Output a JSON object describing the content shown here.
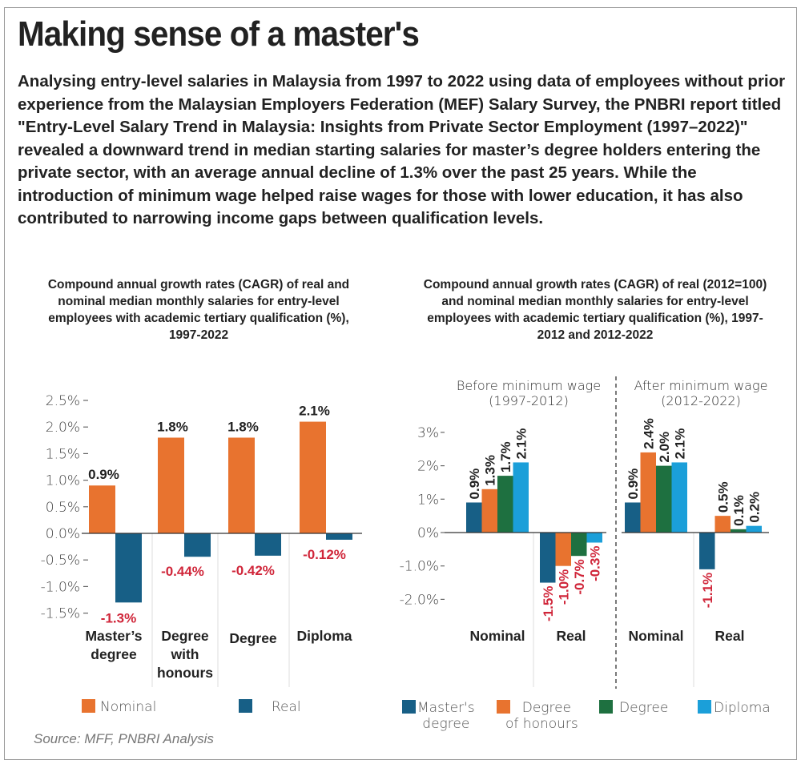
{
  "header": {
    "title": "Making sense of a master's",
    "intro": "Analysing entry-level salaries in Malaysia from 1997 to 2022 using data of employees without prior experience from the Malaysian Employers Federation (MEF) Salary Survey, the PNBRI report titled \"Entry-Level Salary Trend in Malaysia: Insights from Private Sector Employment (1997–2022)\" revealed a downward trend in median starting salaries for master’s degree holders entering the private sector, with an average annual decline of 1.3% over the past 25 years. While the introduction of minimum wage helped raise wages for those with lower education, it has also contributed to narrowing income gaps between qualification levels."
  },
  "source": "Source: MFF, PNBRI Analysis",
  "colors": {
    "nominal": "#E8732F",
    "real": "#175F86",
    "masters": "#175F86",
    "honours": "#E8732F",
    "degree": "#1E7040",
    "diploma": "#1B9FD9",
    "negative_label": "#D0263A"
  },
  "chart_data": [
    {
      "type": "bar",
      "title": "Compound annual growth rates (CAGR) of real and nominal median monthly salaries for entry-level employees with academic tertiary qualification (%), 1997-2022",
      "categories": [
        "Master’s degree",
        "Degree with honours",
        "Degree",
        "Diploma"
      ],
      "category_lines": [
        [
          "Master’s",
          "degree"
        ],
        [
          "Degree",
          "with",
          "honours"
        ],
        [
          "Degree"
        ],
        [
          "Diploma"
        ]
      ],
      "series": [
        {
          "name": "Nominal",
          "values": [
            0.9,
            1.8,
            1.8,
            2.1
          ],
          "labels": [
            "0.9%",
            "1.8%",
            "1.8%",
            "2.1%"
          ]
        },
        {
          "name": "Real",
          "values": [
            -1.3,
            -0.44,
            -0.42,
            -0.12
          ],
          "labels": [
            "-1.3%",
            "-0.44%",
            "-0.42%",
            "-0.12%"
          ]
        }
      ],
      "yticks": [
        "2.5%",
        "2.0%",
        "1.5%",
        "1.0%",
        "0.5%",
        "0.0%",
        "-0.5%",
        "-1.0%",
        "-1.5%"
      ],
      "ytick_values": [
        2.5,
        2.0,
        1.5,
        1.0,
        0.5,
        0.0,
        -0.5,
        -1.0,
        -1.5
      ],
      "ylim": [
        -1.5,
        2.5
      ],
      "xlabel": "",
      "ylabel": "",
      "legend": [
        "Nominal",
        "Real"
      ],
      "legend_position": "bottom"
    },
    {
      "type": "bar",
      "title": "Compound annual growth rates (CAGR) of real (2012=100) and nominal median monthly salaries for entry-level employees with academic tertiary qualification (%), 1997-2012 and 2012-2022",
      "panels": [
        {
          "label_line1": "Before minimum wage",
          "label_line2": "(1997-2012)",
          "groups": [
            {
              "name": "Nominal",
              "values": [
                0.9,
                1.3,
                1.7,
                2.1
              ],
              "labels": [
                "0.9%",
                "1.3%",
                "1.7%",
                "2.1%"
              ]
            },
            {
              "name": "Real",
              "values": [
                -1.5,
                -1.0,
                -0.7,
                -0.3
              ],
              "labels": [
                "-1.5%",
                "-1.0%",
                "-0.7%",
                "-0.3%"
              ]
            }
          ]
        },
        {
          "label_line1": "After minimum wage",
          "label_line2": "(2012-2022)",
          "groups": [
            {
              "name": "Nominal",
              "values": [
                0.9,
                2.4,
                2.0,
                2.1
              ],
              "labels": [
                "0.9%",
                "2.4%",
                "2.0%",
                "2.1%"
              ]
            },
            {
              "name": "Real",
              "values": [
                -1.1,
                0.5,
                0.1,
                0.2
              ],
              "labels": [
                "-1.1%",
                "0.5%",
                "0.1%",
                "0.2%"
              ]
            }
          ]
        }
      ],
      "series_names": [
        "Master's degree",
        "Degree of honours",
        "Degree",
        "Diploma"
      ],
      "yticks": [
        "3%",
        "2%",
        "1%",
        "0%",
        "-1.0%",
        "-2.0%"
      ],
      "ytick_values": [
        3,
        2,
        1,
        0,
        -1,
        -2
      ],
      "ylim": [
        -2,
        3
      ],
      "legend": [
        [
          "Master's",
          "degree"
        ],
        [
          "Degree",
          "of honours"
        ],
        [
          "Degree"
        ],
        [
          "Diploma"
        ]
      ],
      "legend_position": "bottom"
    }
  ]
}
